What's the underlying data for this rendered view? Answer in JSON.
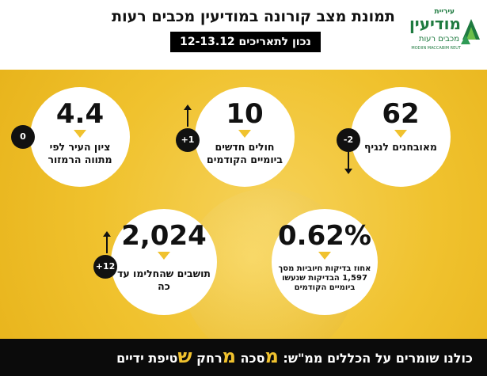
{
  "header": {
    "title": "תמונת מצב קורונה במודיעין מכבים רעות",
    "subtitle": "נכון לתאריכים 12-13.12"
  },
  "logo": {
    "small": "עיריית",
    "main": "מודיעין",
    "sub": "מכבים רעות",
    "english": "MODIIN MACCABIM REUT"
  },
  "stats": {
    "quarantine": {
      "value": "62",
      "label": "מאובחנים לנגיף",
      "change": "-2"
    },
    "new_cases": {
      "value": "10",
      "label": "חולים חדשים ביומיים הקודמים",
      "change": "+1"
    },
    "city_score": {
      "value": "4.4",
      "label": "ציון העיר לפי מתווה הרמזור",
      "change": "0"
    },
    "positive_rate": {
      "value": "0.62%",
      "label": "אחוז בדיקות חיוביות מסך 1,597 הבדיקות שנעשו ביומיים הקודמים"
    },
    "recovered": {
      "value": "2,024",
      "label": "תושבים שהחלימו עד כה",
      "change": "+12"
    }
  },
  "footer": {
    "intro": "כולנו שומרים על הכללים ממ\"ש:",
    "m1_big": "מ",
    "m1_rest": "סכה",
    "m2_big": "מ",
    "m2_rest": "רחק",
    "s_big": "ש",
    "s_rest": "טיפת ידיים"
  },
  "colors": {
    "accent": "#f0c22e",
    "brand_green": "#1e7a3f",
    "dark": "#111111"
  }
}
